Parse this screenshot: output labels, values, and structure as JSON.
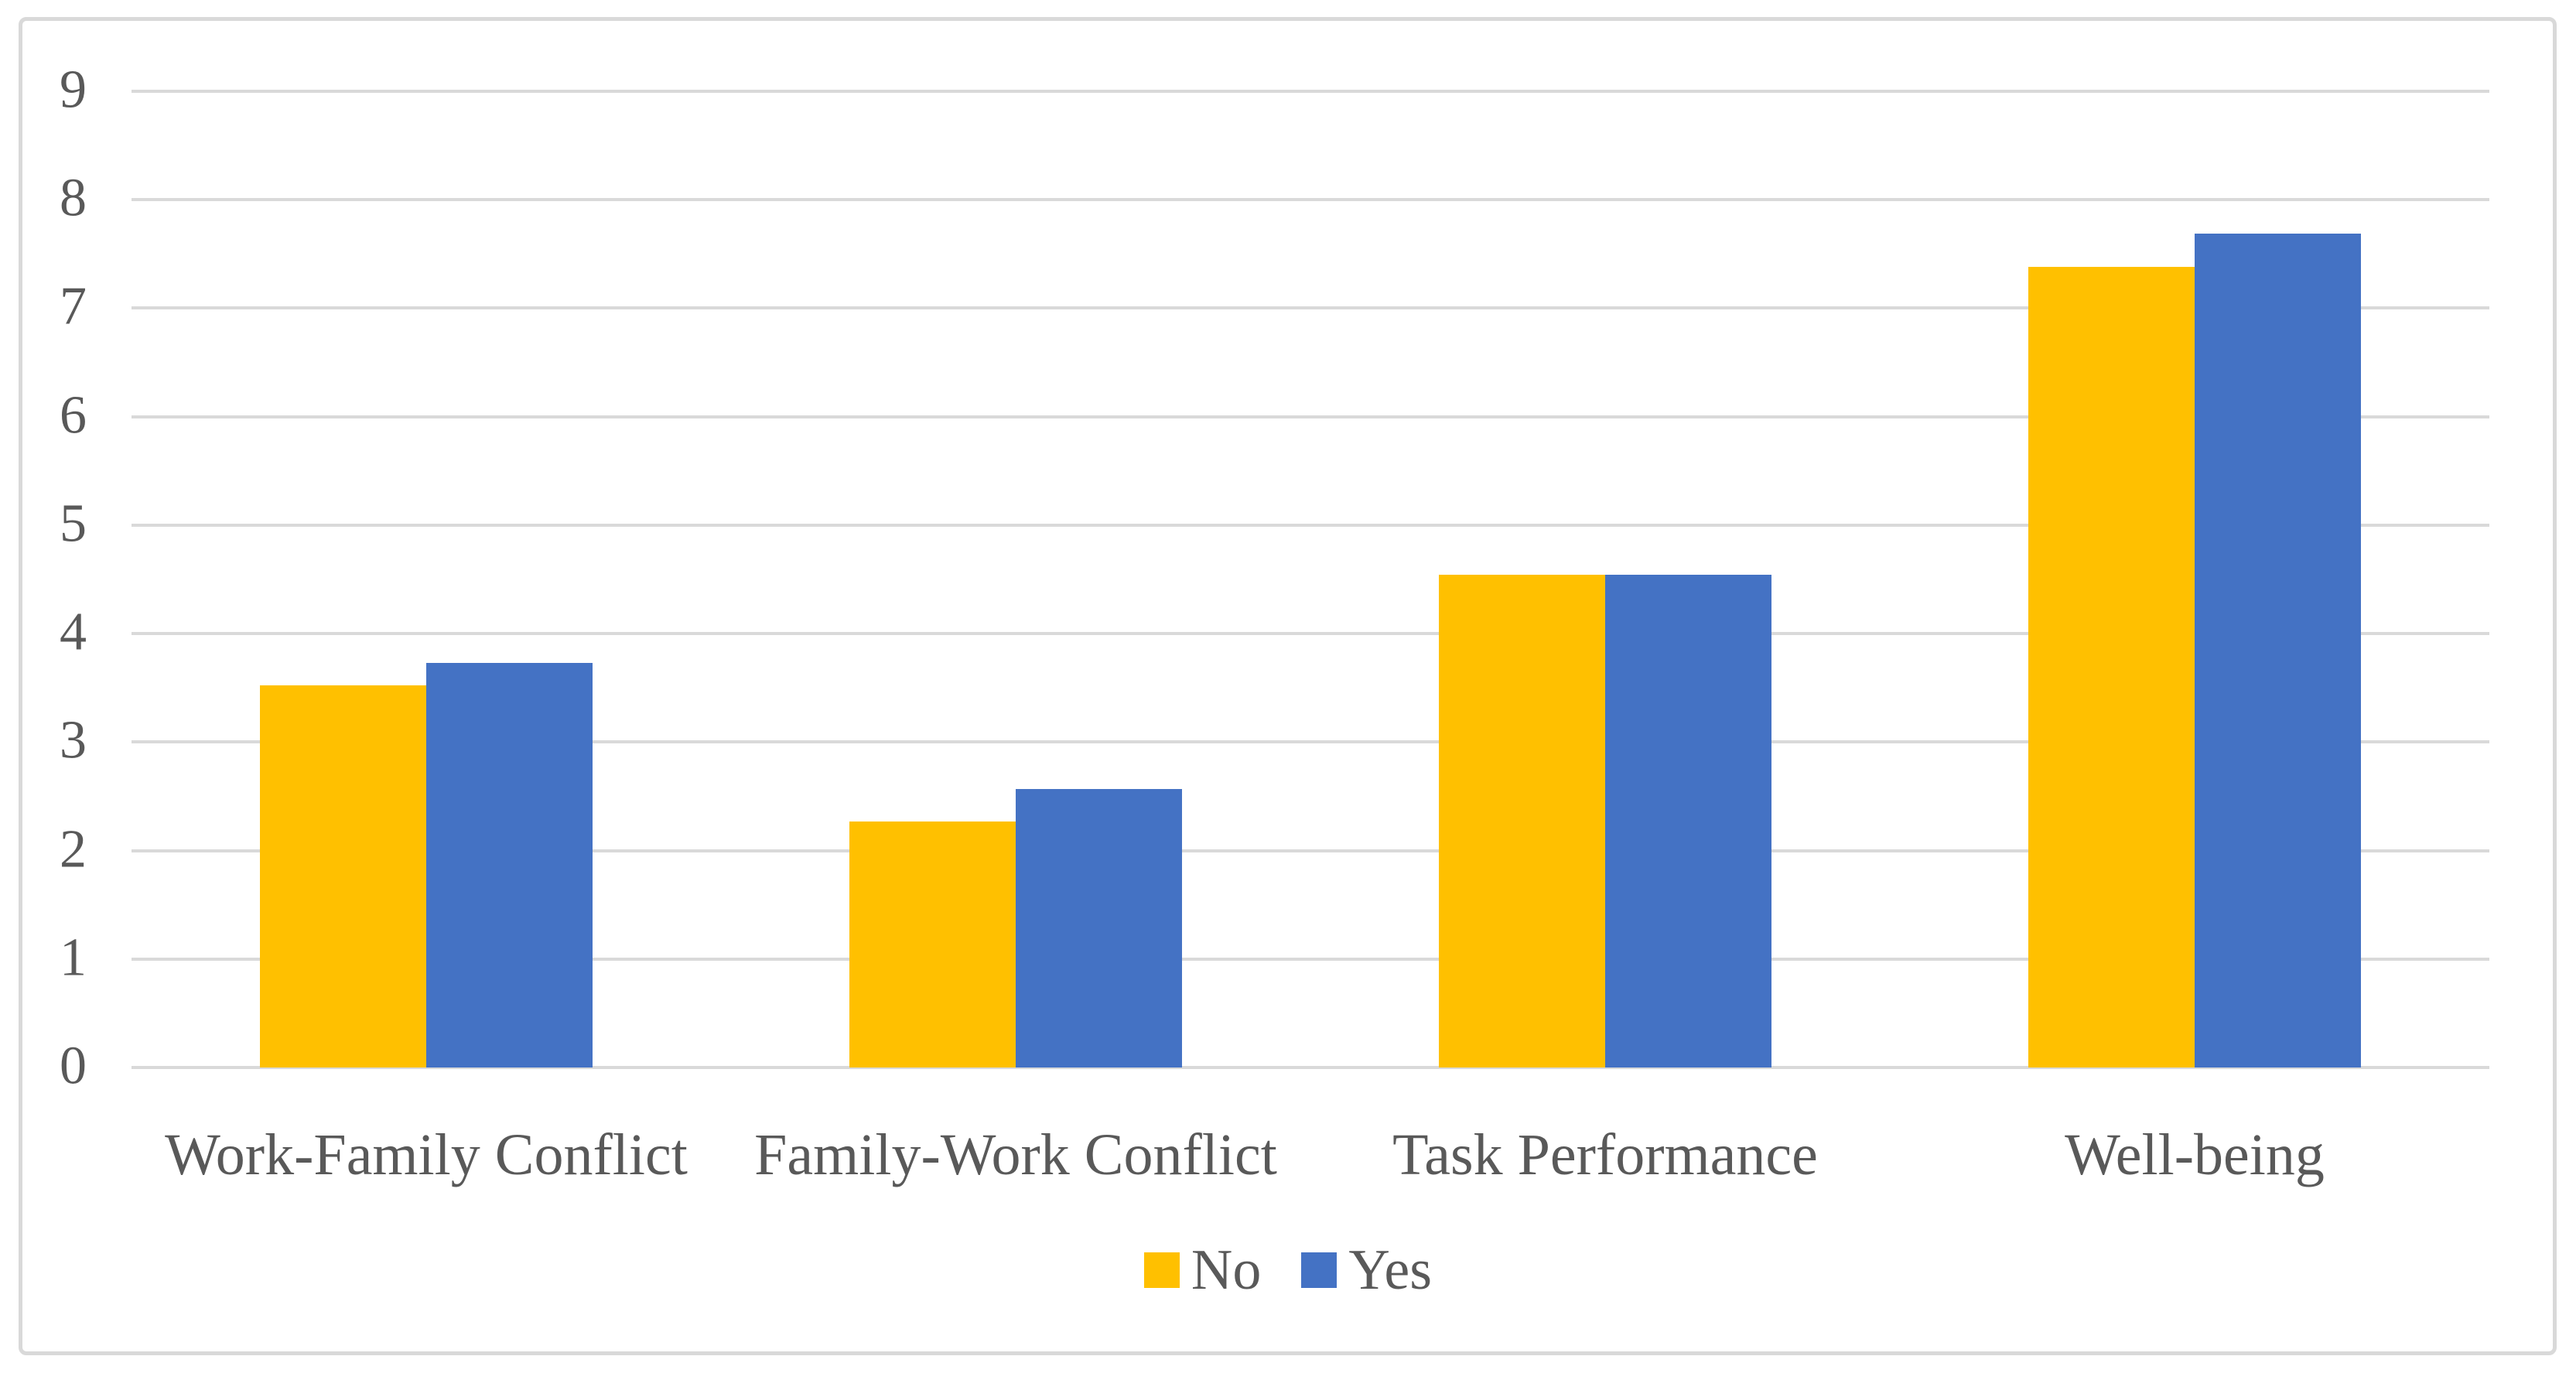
{
  "figure": {
    "background_color": "#FFFFFF",
    "border_color": "#D9D9D9",
    "gridline_color": "#D9D9D9",
    "axis_line_color": "#D9D9D9",
    "tick_label_color": "#595959",
    "category_label_color": "#595959",
    "legend_label_color": "#595959"
  },
  "chart_data": {
    "type": "bar",
    "title": "",
    "xlabel": "",
    "ylabel": "",
    "categories": [
      "Work-Family Conflict",
      "Family-Work Conflict",
      "Task Performance",
      "Well-being"
    ],
    "series": [
      {
        "name": "No",
        "color": "#FFC000",
        "values": [
          3.52,
          2.27,
          4.54,
          7.38
        ]
      },
      {
        "name": "Yes",
        "color": "#4472C4",
        "values": [
          3.73,
          2.57,
          4.54,
          7.69
        ]
      }
    ],
    "ylim": [
      0,
      9
    ],
    "yticks": [
      0,
      1,
      2,
      3,
      4,
      5,
      6,
      7,
      8,
      9
    ],
    "grid": true,
    "legend_position": "bottom"
  }
}
